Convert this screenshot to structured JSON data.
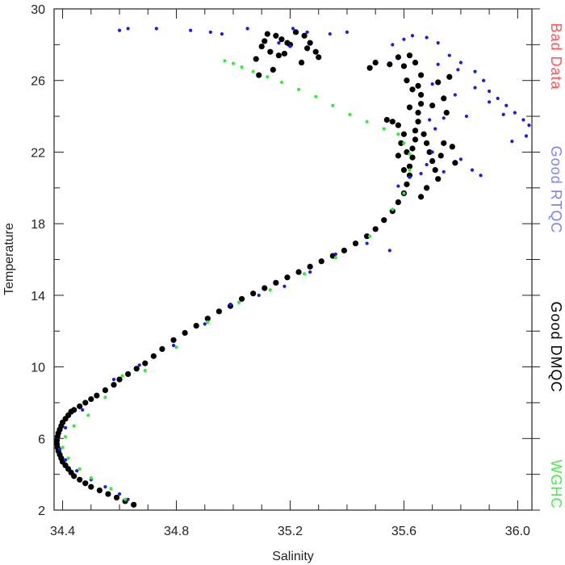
{
  "chart_data": {
    "type": "scatter",
    "title": "",
    "xlabel": "Salinity",
    "ylabel": "Temperature",
    "xlim": [
      34.37,
      36.05
    ],
    "ylim": [
      2,
      30
    ],
    "x_ticks": [
      34.4,
      34.8,
      35.2,
      35.6,
      36.0
    ],
    "x_tick_labels": [
      "34.4",
      "34.8",
      "35.2",
      "35.6",
      "36.0"
    ],
    "y_ticks": [
      2,
      6,
      10,
      14,
      18,
      22,
      26,
      30
    ],
    "y_tick_labels": [
      "2",
      "6",
      "10",
      "14",
      "18",
      "22",
      "26",
      "30"
    ],
    "grid": false,
    "legend_placement": "right, vertical",
    "legend": [
      {
        "label": "Bad Data",
        "color": "#ff5555"
      },
      {
        "label": "Good RTQC",
        "color": "#8080ff"
      },
      {
        "label": "Good DMQC",
        "color": "#000000"
      },
      {
        "label": "WGHC",
        "color": "#44ee44"
      }
    ],
    "series": [
      {
        "name": "Good DMQC",
        "color": "#000000",
        "marker": "circle",
        "points": [
          [
            34.65,
            2.3
          ],
          [
            34.62,
            2.5
          ],
          [
            34.59,
            2.7
          ],
          [
            34.56,
            2.9
          ],
          [
            34.53,
            3.1
          ],
          [
            34.5,
            3.3
          ],
          [
            34.48,
            3.5
          ],
          [
            34.46,
            3.7
          ],
          [
            34.44,
            3.9
          ],
          [
            34.43,
            4.1
          ],
          [
            34.42,
            4.3
          ],
          [
            34.41,
            4.5
          ],
          [
            34.4,
            4.7
          ],
          [
            34.395,
            4.9
          ],
          [
            34.39,
            5.1
          ],
          [
            34.385,
            5.3
          ],
          [
            34.382,
            5.5
          ],
          [
            34.38,
            5.7
          ],
          [
            34.38,
            5.9
          ],
          [
            34.382,
            6.1
          ],
          [
            34.385,
            6.3
          ],
          [
            34.39,
            6.5
          ],
          [
            34.395,
            6.7
          ],
          [
            34.4,
            6.9
          ],
          [
            34.41,
            7.1
          ],
          [
            34.42,
            7.3
          ],
          [
            34.43,
            7.5
          ],
          [
            34.44,
            7.6
          ],
          [
            34.46,
            7.8
          ],
          [
            34.48,
            8.0
          ],
          [
            34.5,
            8.2
          ],
          [
            34.52,
            8.4
          ],
          [
            34.55,
            8.7
          ],
          [
            34.58,
            9.0
          ],
          [
            34.6,
            9.3
          ],
          [
            34.63,
            9.6
          ],
          [
            34.66,
            9.9
          ],
          [
            34.69,
            10.2
          ],
          [
            34.72,
            10.6
          ],
          [
            34.75,
            11.0
          ],
          [
            34.79,
            11.5
          ],
          [
            34.83,
            11.9
          ],
          [
            34.87,
            12.3
          ],
          [
            34.91,
            12.7
          ],
          [
            34.95,
            13.1
          ],
          [
            34.99,
            13.4
          ],
          [
            35.03,
            13.8
          ],
          [
            35.07,
            14.1
          ],
          [
            35.11,
            14.4
          ],
          [
            35.15,
            14.7
          ],
          [
            35.19,
            15.0
          ],
          [
            35.23,
            15.3
          ],
          [
            35.27,
            15.6
          ],
          [
            35.31,
            15.9
          ],
          [
            35.35,
            16.2
          ],
          [
            35.39,
            16.5
          ],
          [
            35.43,
            16.9
          ],
          [
            35.47,
            17.3
          ],
          [
            35.5,
            17.7
          ],
          [
            35.53,
            18.2
          ],
          [
            35.56,
            18.7
          ],
          [
            35.58,
            19.2
          ],
          [
            35.6,
            19.7
          ],
          [
            35.61,
            20.2
          ],
          [
            35.62,
            20.7
          ],
          [
            35.62,
            21.2
          ],
          [
            35.63,
            21.7
          ],
          [
            35.63,
            22.2
          ],
          [
            35.64,
            22.7
          ],
          [
            35.64,
            23.2
          ],
          [
            35.65,
            23.7
          ],
          [
            35.65,
            24.2
          ],
          [
            35.66,
            24.7
          ],
          [
            35.66,
            25.2
          ],
          [
            35.65,
            25.7
          ],
          [
            35.66,
            26.3
          ],
          [
            35.64,
            27.0
          ],
          [
            35.62,
            27.4
          ],
          [
            35.6,
            26.8
          ],
          [
            35.58,
            27.3
          ],
          [
            35.55,
            26.9
          ],
          [
            35.54,
            23.8
          ],
          [
            35.56,
            23.7
          ],
          [
            35.58,
            23.5
          ],
          [
            35.67,
            23.0
          ],
          [
            35.68,
            22.5
          ],
          [
            35.69,
            22.0
          ],
          [
            35.7,
            21.5
          ],
          [
            35.71,
            21.0
          ],
          [
            35.72,
            20.5
          ],
          [
            35.73,
            21.8
          ],
          [
            35.74,
            22.5
          ],
          [
            35.75,
            24.2
          ],
          [
            35.74,
            25.0
          ],
          [
            35.76,
            26.2
          ],
          [
            35.72,
            25.9
          ],
          [
            35.7,
            24.6
          ],
          [
            35.68,
            20.0
          ],
          [
            35.66,
            19.5
          ],
          [
            35.6,
            21.0
          ],
          [
            35.61,
            22.0
          ],
          [
            35.6,
            23.0
          ],
          [
            35.59,
            22.5
          ],
          [
            35.58,
            21.8
          ],
          [
            35.62,
            24.5
          ],
          [
            35.63,
            25.5
          ],
          [
            35.61,
            26.0
          ],
          [
            35.12,
            28.6
          ],
          [
            35.15,
            28.5
          ],
          [
            35.17,
            28.3
          ],
          [
            35.19,
            28.1
          ],
          [
            35.1,
            27.9
          ],
          [
            35.13,
            27.6
          ],
          [
            35.16,
            27.4
          ],
          [
            35.22,
            28.7
          ],
          [
            35.25,
            28.5
          ],
          [
            35.27,
            28.1
          ],
          [
            35.29,
            27.6
          ],
          [
            35.3,
            27.3
          ],
          [
            35.24,
            27.0
          ],
          [
            35.08,
            27.2
          ],
          [
            35.14,
            26.6
          ],
          [
            35.09,
            26.3
          ],
          [
            35.18,
            27.5
          ],
          [
            35.26,
            27.8
          ],
          [
            35.11,
            28.2
          ],
          [
            35.2,
            28.0
          ],
          [
            35.78,
            21.4
          ],
          [
            35.77,
            22.3
          ],
          [
            35.5,
            27.0
          ],
          [
            35.48,
            26.7
          ]
        ]
      },
      {
        "name": "Good RTQC",
        "color": "#1a1aee",
        "marker": "dot",
        "points": [
          [
            34.6,
            28.8
          ],
          [
            34.63,
            28.9
          ],
          [
            34.73,
            28.9
          ],
          [
            34.85,
            28.8
          ],
          [
            34.92,
            28.7
          ],
          [
            34.96,
            28.6
          ],
          [
            35.05,
            28.9
          ],
          [
            35.21,
            28.9
          ],
          [
            35.26,
            28.7
          ],
          [
            35.34,
            28.6
          ],
          [
            35.4,
            28.7
          ],
          [
            35.16,
            28.1
          ],
          [
            35.2,
            27.9
          ],
          [
            35.56,
            28.0
          ],
          [
            35.6,
            28.3
          ],
          [
            35.63,
            28.5
          ],
          [
            35.68,
            28.4
          ],
          [
            35.72,
            28.1
          ],
          [
            35.76,
            27.4
          ],
          [
            35.8,
            27.0
          ],
          [
            35.85,
            26.5
          ],
          [
            35.88,
            26.0
          ],
          [
            35.9,
            25.4
          ],
          [
            35.93,
            25.0
          ],
          [
            35.96,
            24.6
          ],
          [
            35.99,
            24.2
          ],
          [
            36.02,
            23.8
          ],
          [
            36.04,
            23.5
          ],
          [
            36.03,
            22.9
          ],
          [
            35.98,
            22.6
          ],
          [
            35.95,
            24.1
          ],
          [
            35.9,
            24.8
          ],
          [
            35.85,
            25.6
          ],
          [
            35.79,
            26.6
          ],
          [
            35.72,
            26.9
          ],
          [
            35.7,
            25.8
          ],
          [
            35.74,
            23.9
          ],
          [
            35.7,
            22.0
          ],
          [
            35.68,
            21.3
          ],
          [
            35.66,
            20.8
          ],
          [
            35.62,
            20.6
          ],
          [
            35.58,
            20.1
          ],
          [
            35.8,
            21.6
          ],
          [
            35.84,
            21.0
          ],
          [
            35.87,
            20.7
          ],
          [
            35.74,
            20.9
          ],
          [
            35.71,
            23.3
          ],
          [
            35.69,
            23.8
          ],
          [
            35.78,
            25.2
          ],
          [
            35.82,
            24.0
          ],
          [
            35.55,
            16.5
          ],
          [
            35.47,
            16.9
          ],
          [
            35.36,
            16.3
          ],
          [
            35.27,
            15.3
          ],
          [
            35.18,
            14.5
          ],
          [
            35.09,
            14.0
          ],
          [
            34.99,
            13.5
          ],
          [
            34.9,
            12.4
          ],
          [
            34.79,
            11.2
          ],
          [
            34.67,
            10.1
          ],
          [
            34.58,
            9.3
          ],
          [
            34.47,
            7.6
          ],
          [
            34.41,
            6.6
          ],
          [
            34.39,
            5.4
          ],
          [
            34.41,
            4.8
          ],
          [
            34.45,
            4.2
          ],
          [
            34.5,
            3.7
          ],
          [
            34.55,
            3.3
          ],
          [
            34.6,
            2.9
          ],
          [
            34.63,
            2.6
          ]
        ]
      },
      {
        "name": "WGHC",
        "color": "#33ee33",
        "marker": "dot",
        "points": [
          [
            34.97,
            27.1
          ],
          [
            35.0,
            26.95
          ],
          [
            35.03,
            26.75
          ],
          [
            35.07,
            26.5
          ],
          [
            35.12,
            26.2
          ],
          [
            35.17,
            25.9
          ],
          [
            35.23,
            25.5
          ],
          [
            35.29,
            25.1
          ],
          [
            35.35,
            24.6
          ],
          [
            35.41,
            24.1
          ],
          [
            35.47,
            23.7
          ],
          [
            35.53,
            23.3
          ],
          [
            35.58,
            23.0
          ],
          [
            35.6,
            22.5
          ],
          [
            35.62,
            21.9
          ],
          [
            35.62,
            21.0
          ],
          [
            35.6,
            19.7
          ],
          [
            35.56,
            18.8
          ],
          [
            35.48,
            17.3
          ],
          [
            35.36,
            16.1
          ],
          [
            35.25,
            15.2
          ],
          [
            35.13,
            14.3
          ],
          [
            35.02,
            13.6
          ],
          [
            34.91,
            12.5
          ],
          [
            34.8,
            11.1
          ],
          [
            34.69,
            9.8
          ],
          [
            34.61,
            9.5
          ],
          [
            34.55,
            8.3
          ],
          [
            34.49,
            7.3
          ],
          [
            34.44,
            6.7
          ],
          [
            34.41,
            6.1
          ],
          [
            34.4,
            5.5
          ],
          [
            34.42,
            4.9
          ],
          [
            34.46,
            4.3
          ],
          [
            34.5,
            3.8
          ],
          [
            34.57,
            3.2
          ],
          [
            34.62,
            2.6
          ]
        ]
      }
    ]
  }
}
